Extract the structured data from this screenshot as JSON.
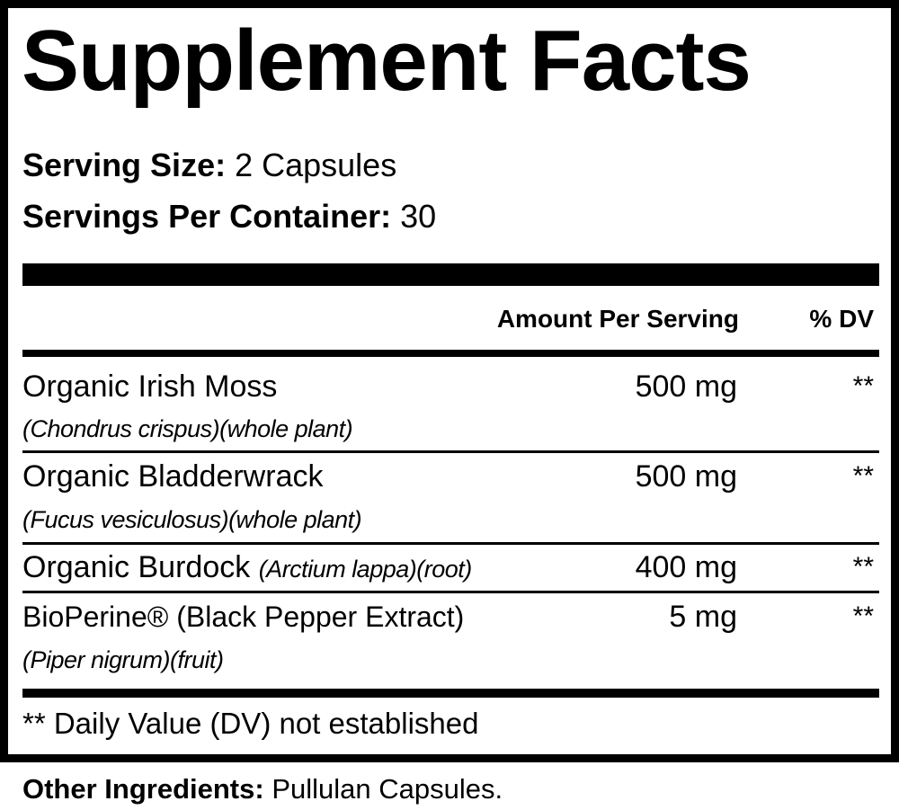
{
  "title": "Supplement Facts",
  "serving_size": {
    "label": "Serving Size:",
    "value": "2 Capsules"
  },
  "servings_per_container": {
    "label": "Servings Per Container:",
    "value": "30"
  },
  "columns": {
    "amount": "Amount Per Serving",
    "dv": "% DV"
  },
  "rows": [
    {
      "name": "Organic Irish Moss",
      "sci": "(Chondrus crispus)(whole plant)",
      "amount": "500 mg",
      "dv": "**"
    },
    {
      "name": "Organic Bladderwrack",
      "sci": "(Fucus vesiculosus)(whole plant)",
      "amount": "500 mg",
      "dv": "**"
    },
    {
      "name": "Organic Burdock",
      "sci": "(Arctium lappa)(root)",
      "amount": "400 mg",
      "dv": "**"
    },
    {
      "name": "BioPerine® (Black Pepper Extract)",
      "sci": "(Piper nigrum)(fruit)",
      "amount": "5 mg",
      "dv": "**"
    }
  ],
  "footnote": "** Daily Value (DV) not established",
  "other": {
    "label": "Other Ingredients:",
    "value": "Pullulan Capsules."
  }
}
